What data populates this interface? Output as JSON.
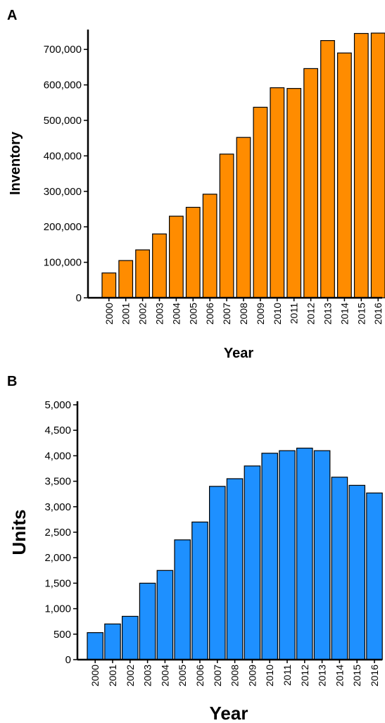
{
  "chart_data": [
    {
      "panel_label": "A",
      "type": "bar",
      "categories": [
        "2000",
        "2001",
        "2002",
        "2003",
        "2004",
        "2005",
        "2006",
        "2007",
        "2008",
        "2009",
        "2010",
        "2011",
        "2012",
        "2013",
        "2014",
        "2015",
        "2016"
      ],
      "values": [
        70000,
        105000,
        135000,
        180000,
        230000,
        255000,
        292000,
        405000,
        452000,
        537000,
        592000,
        590000,
        646000,
        725000,
        690000,
        745000,
        746000
      ],
      "xlabel": "Year",
      "ylabel": "Inventory",
      "ylim": [
        0,
        750000
      ],
      "yticks": [
        0,
        100000,
        200000,
        300000,
        400000,
        500000,
        600000,
        700000
      ],
      "ytick_labels": [
        "0",
        "100,000",
        "200,000",
        "300,000",
        "400,000",
        "500,000",
        "600,000",
        "700,000"
      ],
      "bar_color": "#ff8c00",
      "grid": false
    },
    {
      "panel_label": "B",
      "type": "bar",
      "categories": [
        "2000",
        "2001",
        "2002",
        "2003",
        "2004",
        "2005",
        "2006",
        "2007",
        "2008",
        "2009",
        "2010",
        "2011",
        "2012",
        "2013",
        "2014",
        "2015",
        "2016"
      ],
      "values": [
        530,
        700,
        850,
        1500,
        1750,
        2350,
        2700,
        3400,
        3550,
        3800,
        4050,
        4100,
        4150,
        4100,
        3580,
        3420,
        3270
      ],
      "xlabel": "Year",
      "ylabel": "Units",
      "ylim": [
        0,
        5000
      ],
      "yticks": [
        0,
        500,
        1000,
        1500,
        2000,
        2500,
        3000,
        3500,
        4000,
        4500,
        5000
      ],
      "ytick_labels": [
        "0",
        "500",
        "1,000",
        "1,500",
        "2,000",
        "2,500",
        "3,000",
        "3,500",
        "4,000",
        "4,500",
        "5,000"
      ],
      "bar_color": "#1e90ff",
      "grid": false
    }
  ]
}
